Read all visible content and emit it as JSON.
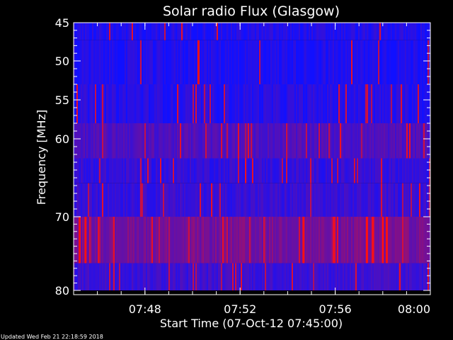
{
  "chart_data": {
    "type": "heatmap",
    "title": "Solar radio Flux (Glasgow)",
    "xlabel": "Start Time (07-Oct-12 07:45:00)",
    "ylabel": "Frequency [MHz]",
    "xlim": [
      "07:45:00",
      "08:00:00"
    ],
    "ylim": [
      45,
      80
    ],
    "y_inverted": true,
    "x_ticks": [
      "07:48",
      "07:52",
      "07:56",
      "08:00"
    ],
    "y_ticks": [
      45,
      50,
      55,
      60,
      70,
      80
    ],
    "colors": {
      "low": "#1010ff",
      "mid": "#7a1090",
      "high": "#ff1010",
      "background": "#000000",
      "text": "#ffffff"
    },
    "bands": [
      {
        "freq_start": 45.0,
        "freq_end": 47.3,
        "level": 0.1,
        "spike_rate": 0.03
      },
      {
        "freq_start": 47.3,
        "freq_end": 53.0,
        "level": 0.08,
        "spike_rate": 0.03
      },
      {
        "freq_start": 53.0,
        "freq_end": 58.0,
        "level": 0.12,
        "spike_rate": 0.04
      },
      {
        "freq_start": 58.0,
        "freq_end": 62.5,
        "level": 0.35,
        "spike_rate": 0.06
      },
      {
        "freq_start": 62.5,
        "freq_end": 65.7,
        "level": 0.2,
        "spike_rate": 0.05
      },
      {
        "freq_start": 65.7,
        "freq_end": 70.0,
        "level": 0.22,
        "spike_rate": 0.05
      },
      {
        "freq_start": 70.0,
        "freq_end": 76.3,
        "level": 0.55,
        "spike_rate": 0.07
      },
      {
        "freq_start": 76.3,
        "freq_end": 80.0,
        "level": 0.25,
        "spike_rate": 0.05
      }
    ],
    "bursts": [
      {
        "time": "07:50:15",
        "freq_start": 47.3,
        "freq_end": 53.0
      },
      {
        "time": "07:45:15",
        "freq_start": 70.0,
        "freq_end": 76.3
      },
      {
        "time": "07:45:30",
        "freq_start": 70.0,
        "freq_end": 76.3
      },
      {
        "time": "07:54:40",
        "freq_start": 70.0,
        "freq_end": 76.3
      },
      {
        "time": "07:57:20",
        "freq_start": 70.0,
        "freq_end": 76.3
      },
      {
        "time": "07:57:35",
        "freq_start": 70.0,
        "freq_end": 76.3
      },
      {
        "time": "07:58:00",
        "freq_start": 70.0,
        "freq_end": 76.3
      },
      {
        "time": "07:58:10",
        "freq_start": 70.0,
        "freq_end": 76.3
      }
    ]
  },
  "footer": {
    "updated_text": "Updated Wed Feb 21 22:18:59 2018"
  }
}
